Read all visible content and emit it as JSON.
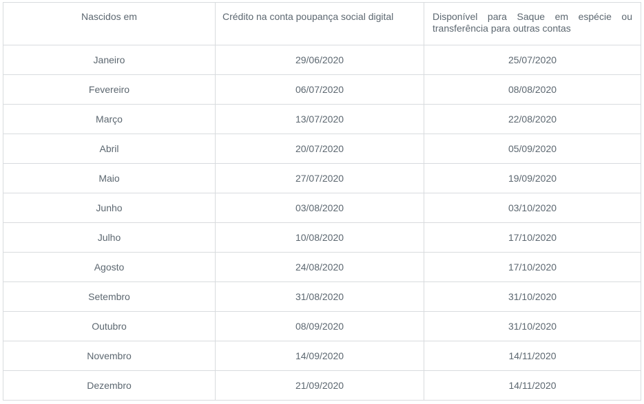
{
  "chart_data": {
    "type": "table",
    "title": "",
    "columns": [
      "Nascidos em",
      "Crédito na conta poupança social digital",
      "Disponível para Saque em espécie ou transferência para outras contas"
    ],
    "rows": [
      [
        "Janeiro",
        "29/06/2020",
        "25/07/2020"
      ],
      [
        "Fevereiro",
        "06/07/2020",
        "08/08/2020"
      ],
      [
        "Março",
        "13/07/2020",
        "22/08/2020"
      ],
      [
        "Abril",
        "20/07/2020",
        "05/09/2020"
      ],
      [
        "Maio",
        "27/07/2020",
        "19/09/2020"
      ],
      [
        "Junho",
        "03/08/2020",
        "03/10/2020"
      ],
      [
        "Julho",
        "10/08/2020",
        "17/10/2020"
      ],
      [
        "Agosto",
        "24/08/2020",
        "17/10/2020"
      ],
      [
        "Setembro",
        "31/08/2020",
        "31/10/2020"
      ],
      [
        "Outubro",
        "08/09/2020",
        "31/10/2020"
      ],
      [
        "Novembro",
        "14/09/2020",
        "14/11/2020"
      ],
      [
        "Dezembro",
        "21/09/2020",
        "14/11/2020"
      ]
    ],
    "layout": {
      "header_alignments": [
        "center",
        "left",
        "justify"
      ],
      "cell_alignment": "center",
      "grid": "full-borders"
    }
  },
  "colors": {
    "text": "#5c6770",
    "border": "#d8dbde",
    "background": "#ffffff"
  }
}
